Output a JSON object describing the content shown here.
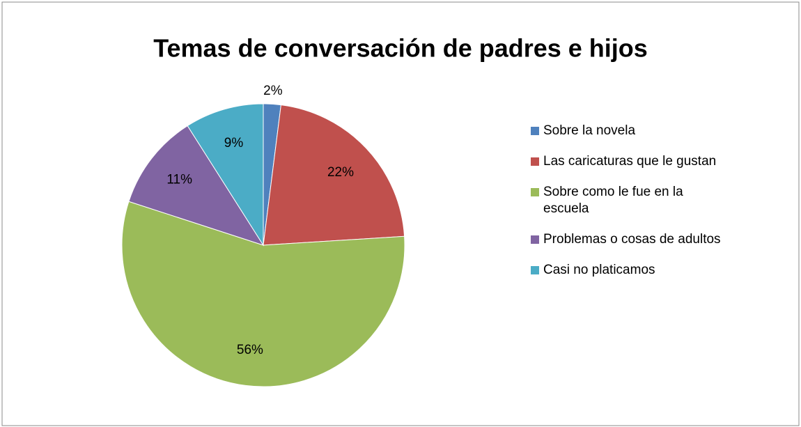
{
  "chart_data": {
    "type": "pie",
    "title": "Temas de conversación de padres e hijos",
    "categories": [
      "Sobre la novela",
      "Las caricaturas que le gustan",
      "Sobre como le fue en la escuela",
      "Problemas o cosas de adultos",
      "Casi no platicamos"
    ],
    "values": [
      2,
      22,
      56,
      11,
      9
    ],
    "value_labels": [
      "2%",
      "22%",
      "56%",
      "11%",
      "9%"
    ],
    "colors": [
      "#4f81bd",
      "#c0504d",
      "#9bbb59",
      "#8064a2",
      "#4bacc6"
    ],
    "legend": "right"
  }
}
